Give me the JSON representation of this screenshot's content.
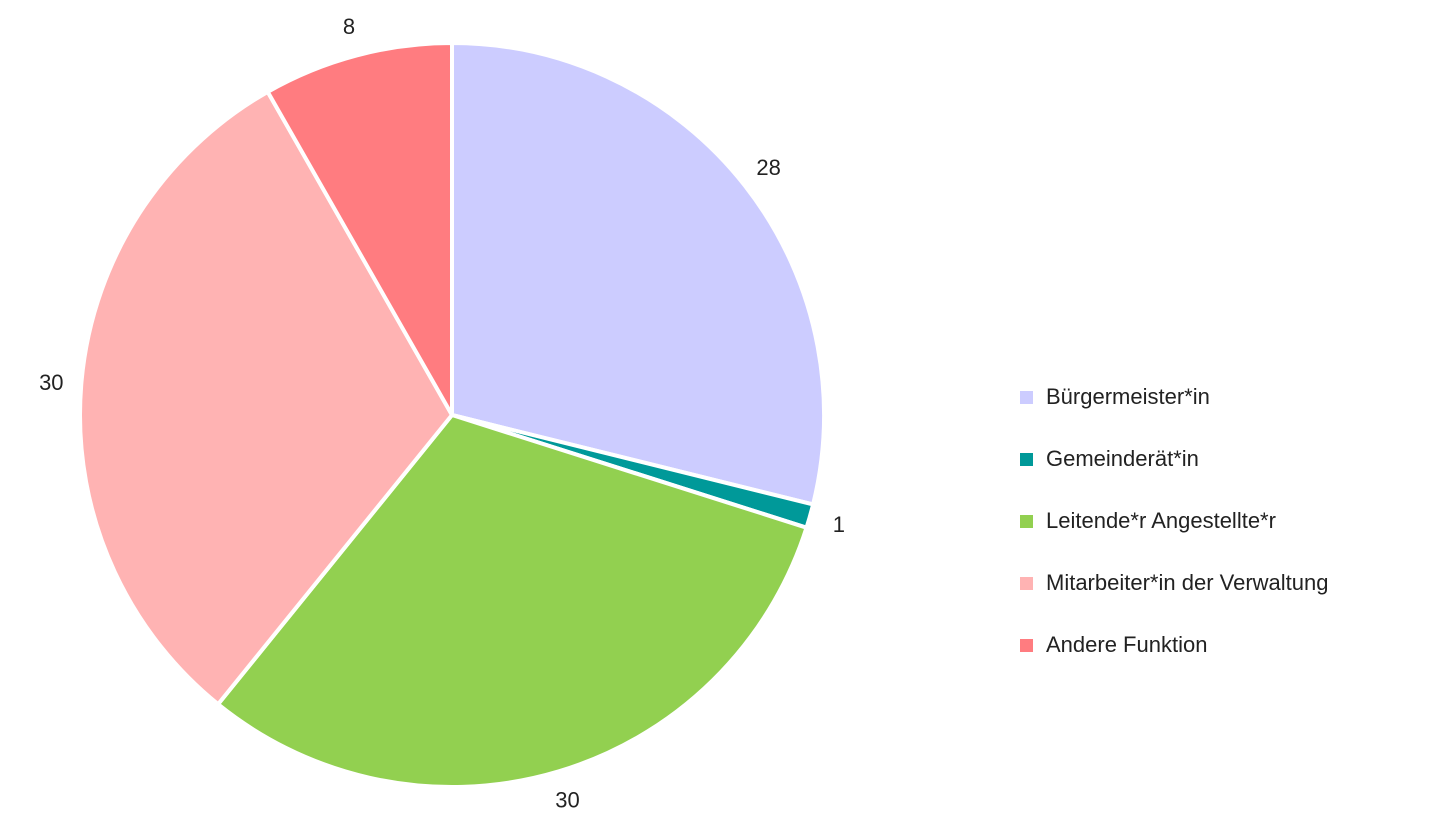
{
  "chart_data": {
    "type": "pie",
    "categories": [
      "Bürgermeister*in",
      "Gemeinderät*in",
      "Leitende*r Angestellte*r",
      "Mitarbeiter*in der Verwaltung",
      "Andere Funktion"
    ],
    "values": [
      28,
      1,
      30,
      30,
      8
    ],
    "value_labels": [
      "28",
      "1",
      "30",
      "30",
      "8"
    ],
    "colors": [
      "#ccccff",
      "#009999",
      "#92d050",
      "#ffb3b3",
      "#ff7c80"
    ],
    "start_angle_deg": 0,
    "direction": "clockwise",
    "data_labels": "outside",
    "legend": {
      "position": "right"
    }
  }
}
